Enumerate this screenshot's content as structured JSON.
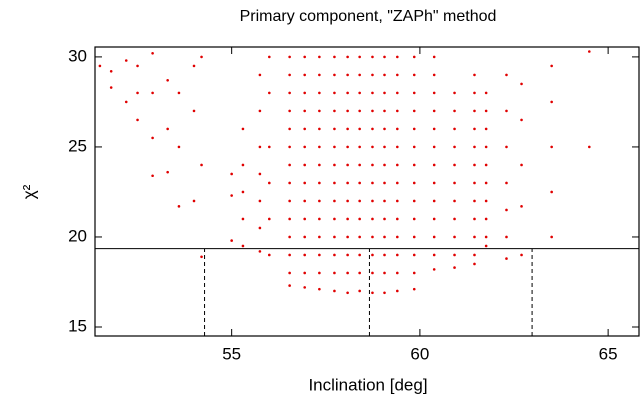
{
  "chart_data": {
    "type": "scatter",
    "title": "Primary component, \"ZAPh\" method",
    "xlabel": "Inclination [deg]",
    "ylabel": "χ²",
    "xlim": [
      51.37,
      65.82
    ],
    "ylim": [
      14.5,
      30.55
    ],
    "xticks": [
      55,
      60,
      65
    ],
    "yticks": [
      15,
      20,
      25,
      30
    ],
    "color": "#e00000",
    "hline": 19.35,
    "vlines": [
      54.28,
      58.66,
      62.98
    ],
    "x": [
      56.54,
      56.54,
      56.54,
      56.54,
      56.54,
      56.54,
      56.54,
      56.54,
      56.54,
      56.54,
      56.54,
      56.54,
      56.54,
      56.54,
      56.94,
      56.94,
      56.94,
      56.94,
      56.94,
      56.94,
      56.94,
      56.94,
      56.94,
      56.94,
      56.94,
      56.94,
      56.94,
      56.94,
      57.33,
      57.33,
      57.33,
      57.33,
      57.33,
      57.33,
      57.33,
      57.33,
      57.33,
      57.33,
      57.33,
      57.33,
      57.33,
      57.33,
      57.73,
      57.73,
      57.73,
      57.73,
      57.73,
      57.73,
      57.73,
      57.73,
      57.73,
      57.73,
      57.73,
      57.73,
      57.73,
      57.73,
      58.08,
      58.08,
      58.08,
      58.08,
      58.08,
      58.08,
      58.08,
      58.08,
      58.08,
      58.08,
      58.08,
      58.08,
      58.08,
      58.08,
      58.4,
      58.4,
      58.4,
      58.4,
      58.4,
      58.4,
      58.4,
      58.4,
      58.4,
      58.4,
      58.4,
      58.4,
      58.4,
      58.4,
      58.74,
      58.74,
      58.74,
      58.74,
      58.74,
      58.74,
      58.74,
      58.74,
      58.74,
      58.74,
      58.74,
      58.74,
      58.74,
      58.74,
      59.06,
      59.06,
      59.06,
      59.06,
      59.06,
      59.06,
      59.06,
      59.06,
      59.06,
      59.06,
      59.06,
      59.06,
      59.06,
      59.06,
      59.4,
      59.4,
      59.4,
      59.4,
      59.4,
      59.4,
      59.4,
      59.4,
      59.4,
      59.4,
      59.4,
      59.4,
      59.4,
      59.4,
      59.85,
      59.85,
      59.85,
      59.85,
      59.85,
      59.85,
      59.85,
      59.85,
      59.85,
      59.85,
      59.85,
      59.85,
      59.85,
      59.85,
      60.38,
      60.38,
      60.38,
      60.38,
      60.38,
      60.38,
      60.38,
      60.38,
      60.38,
      60.38,
      60.38,
      60.38,
      60.38,
      60.92,
      60.92,
      60.92,
      60.92,
      60.92,
      60.92,
      60.92,
      60.92,
      60.92,
      60.92,
      60.92,
      61.45,
      61.45,
      61.45,
      61.45,
      61.45,
      61.45,
      61.45,
      61.45,
      61.45,
      61.45,
      61.45,
      61.45,
      61.76,
      61.76,
      61.76,
      61.76,
      61.76,
      61.76,
      61.76,
      61.76,
      61.76,
      61.76,
      55.3,
      55.3,
      55.3,
      55.3,
      55.3,
      55.75,
      55.75,
      55.75,
      55.75,
      55.75,
      55.75,
      55.75,
      55.0,
      55.0,
      55.0,
      56.0,
      56.0,
      56.0,
      56.0,
      56.0,
      56.0,
      62.3,
      62.3,
      62.3,
      62.3,
      62.3,
      62.3,
      62.3,
      62.7,
      62.7,
      62.7,
      62.7,
      62.7,
      63.5,
      63.5,
      63.5,
      63.5,
      63.5,
      64.5,
      64.5,
      51.5,
      51.8,
      51.8,
      52.2,
      52.2,
      52.5,
      52.5,
      52.5,
      52.9,
      52.9,
      52.9,
      52.9,
      53.3,
      53.3,
      53.3,
      53.6,
      53.6,
      53.6,
      54.0,
      54.0,
      54.0,
      54.2,
      54.2,
      54.2
    ],
    "y": [
      17.3,
      18,
      19,
      20,
      21,
      22,
      23,
      24,
      25,
      26,
      27,
      28,
      29,
      30,
      17.2,
      18,
      19,
      20,
      21,
      22,
      23,
      24,
      25,
      26,
      27,
      28,
      29,
      30,
      17.1,
      18,
      19,
      20,
      21,
      22,
      23,
      24,
      25,
      26,
      27,
      28,
      29,
      30,
      17.0,
      18,
      19,
      20,
      21,
      22,
      23,
      24,
      25,
      26,
      27,
      28,
      29,
      30,
      16.9,
      18,
      19,
      20,
      21,
      22,
      23,
      24,
      25,
      26,
      27,
      28,
      29,
      30,
      17.0,
      18,
      19,
      20,
      21,
      22,
      23,
      24,
      25,
      26,
      27,
      28,
      29,
      30,
      16.9,
      18,
      19,
      20,
      21,
      22,
      23,
      24,
      25,
      26,
      27,
      28,
      29,
      30,
      16.9,
      18,
      19,
      20,
      21,
      22,
      23,
      24,
      25,
      26,
      27,
      28,
      29,
      30,
      17.0,
      18,
      19,
      20,
      21,
      22,
      23,
      24,
      25,
      26,
      27,
      28,
      29,
      30,
      17.1,
      18,
      19,
      20,
      21,
      22,
      23,
      24,
      25,
      26,
      27,
      28,
      29,
      30,
      18.2,
      19,
      20,
      21,
      22,
      23,
      24,
      25,
      26,
      27,
      28,
      29,
      30,
      18.3,
      19,
      20,
      21,
      22,
      23,
      24,
      25,
      26,
      27,
      28,
      18.5,
      19,
      20,
      21,
      22,
      23,
      24,
      25,
      26,
      27,
      28,
      29,
      19.5,
      20,
      21,
      22,
      23,
      24,
      25,
      26,
      27,
      28,
      19.5,
      21,
      22.5,
      24,
      26,
      19.2,
      20.5,
      22,
      23.5,
      25,
      27,
      29,
      19.8,
      22.3,
      23.5,
      19,
      21,
      23,
      25,
      28,
      30,
      18.8,
      20,
      21.5,
      23,
      25,
      27,
      29,
      19,
      21.7,
      24,
      26.5,
      28.5,
      20,
      22.5,
      25,
      27.5,
      29.5,
      25,
      30.3,
      29.5,
      29.2,
      28.3,
      27.5,
      29.8,
      26.5,
      28,
      29.5,
      23.4,
      25.5,
      28,
      30.2,
      23.6,
      26,
      28.7,
      21.7,
      25,
      28,
      22,
      27,
      29.5,
      18.9,
      24,
      30
    ]
  }
}
